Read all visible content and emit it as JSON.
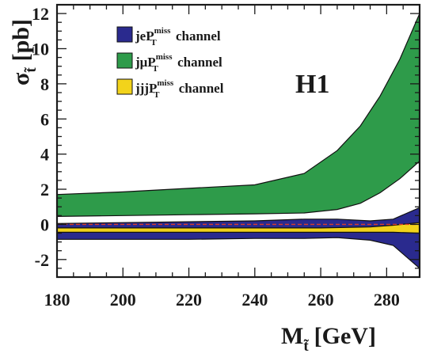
{
  "chart_data": {
    "type": "area",
    "title": "H1",
    "xlabel": {
      "main": "M",
      "sub": "t̃",
      "unit": "[GeV]"
    },
    "ylabel": {
      "main": "σ",
      "sub": "t̃",
      "unit": "[pb]"
    },
    "xlim": [
      180,
      290
    ],
    "ylim": [
      -3,
      12.5
    ],
    "xticks": [
      180,
      200,
      220,
      240,
      260,
      280
    ],
    "yticks": [
      12,
      10,
      8,
      6,
      4,
      2,
      0,
      -2
    ],
    "zero_line": {
      "y": 0,
      "style": "dashed",
      "color": "#d93b2b"
    },
    "legend": {
      "placement": "top-left",
      "entries": [
        {
          "prefix": "je",
          "sym": "P",
          "sub": "T",
          "sup": "miss",
          "suffix": " channel"
        },
        {
          "prefix": "jμ",
          "sym": "P",
          "sub": "T",
          "sup": "miss",
          "suffix": " channel"
        },
        {
          "prefix": "jjj",
          "sym": "P",
          "sub": "T",
          "sup": "miss",
          "suffix": " channel"
        }
      ]
    },
    "series": [
      {
        "name": "jeP_T^miss channel",
        "color": "#2a2a8e",
        "x": [
          180,
          200,
          220,
          240,
          255,
          265,
          275,
          282,
          290
        ],
        "upper": [
          0.05,
          0.1,
          0.15,
          0.2,
          0.3,
          0.3,
          0.2,
          0.3,
          0.95
        ],
        "lower": [
          -0.85,
          -0.85,
          -0.85,
          -0.8,
          -0.8,
          -0.75,
          -0.9,
          -1.2,
          -2.5
        ]
      },
      {
        "name": "jμP_T^miss channel",
        "color": "#2e9b4a",
        "x": [
          180,
          200,
          220,
          240,
          255,
          265,
          272,
          278,
          284,
          290
        ],
        "upper": [
          1.7,
          1.85,
          2.05,
          2.25,
          2.9,
          4.2,
          5.6,
          7.3,
          9.4,
          12.0
        ],
        "lower": [
          0.45,
          0.5,
          0.55,
          0.6,
          0.65,
          0.85,
          1.2,
          1.8,
          2.6,
          3.6
        ]
      },
      {
        "name": "jjjP_T^miss channel",
        "color": "#f2d31b",
        "x": [
          180,
          200,
          220,
          240,
          260,
          275,
          282,
          290
        ],
        "upper": [
          -0.2,
          -0.2,
          -0.2,
          -0.2,
          -0.2,
          -0.15,
          -0.05,
          0.1
        ],
        "lower": [
          -0.45,
          -0.45,
          -0.45,
          -0.45,
          -0.45,
          -0.45,
          -0.45,
          -0.5
        ]
      }
    ]
  }
}
